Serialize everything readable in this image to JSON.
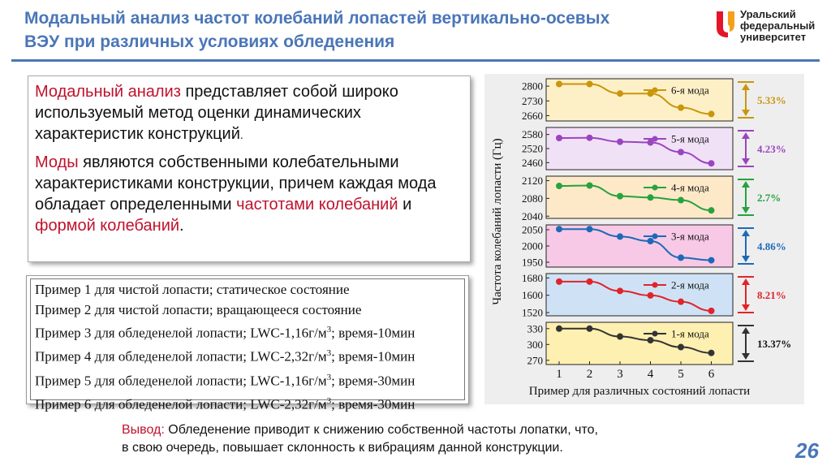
{
  "header": {
    "title_line1": "Модальный анализ частот колебаний лопастей вертикально-осевых",
    "title_line2": "ВЭУ при различных условиях обледенения"
  },
  "logo": {
    "line1": "Уральский",
    "line2": "федеральный",
    "line3": "университет",
    "colors": [
      "#e2152b",
      "#f6a01a"
    ]
  },
  "intro": {
    "p1_term": "Модальный анализ",
    "p1_rest": " представляет собой широко используемый метод оценки динамических характеристик конструкций",
    "p1_end": ".",
    "p2_term": "Моды",
    "p2_rest": " являются собственными колебательными характеристиками конструкции, причем каждая мода обладает определенными ",
    "p2_term2": "частотами колебаний",
    "p2_and": " и ",
    "p2_term3": "формой колебаний",
    "p2_end": "."
  },
  "examples": [
    {
      "text": "Пример 1 для чистой лопасти; статическое состояние",
      "sup": "",
      "tail": ""
    },
    {
      "text": "Пример 2 для чистой лопасти; вращающееся состояние",
      "sup": "",
      "tail": ""
    },
    {
      "text": "Пример 3 для обледенелой лопасти; LWC-1,16г/м",
      "sup": "3",
      "tail": "; время-10мин"
    },
    {
      "text": "Пример 4 для обледенелой лопасти; LWC-2,32г/м",
      "sup": "3",
      "tail": "; время-10мин"
    },
    {
      "text": "Пример 5 для обледенелой лопасти; LWC-1,16г/м",
      "sup": "3",
      "tail": "; время-30мин"
    },
    {
      "text": "Пример 6 для обледенелой лопасти; LWC-2,32г/м",
      "sup": "3",
      "tail": "; время-30мин"
    }
  ],
  "chart_data": {
    "type": "line",
    "ylabel": "Частота колебаний лопасти (Гц)",
    "xlabel": "Пример для различных состояний лопасти",
    "x": [
      1,
      2,
      3,
      4,
      5,
      6
    ],
    "panels": [
      {
        "name": "6-я мода",
        "bg": "#fdf0c6",
        "color": "#c9960c",
        "ylim": [
          2635,
          2835
        ],
        "ticks": [
          2800,
          2730,
          2660
        ],
        "values": [
          2810,
          2810,
          2765,
          2765,
          2698,
          2668
        ],
        "pct": "5.33%"
      },
      {
        "name": "5-я мода",
        "bg": "#f1e1f7",
        "color": "#9b44c0",
        "ylim": [
          2430,
          2610
        ],
        "ticks": [
          2580,
          2520,
          2460
        ],
        "values": [
          2565,
          2566,
          2549,
          2546,
          2505,
          2457
        ],
        "pct": "4.23%"
      },
      {
        "name": "4-я мода",
        "bg": "#fde9c8",
        "color": "#27a23f",
        "ylim": [
          2035,
          2130
        ],
        "ticks": [
          2120,
          2080,
          2040
        ],
        "values": [
          2108,
          2109,
          2085,
          2082,
          2076,
          2053
        ],
        "pct": "2.7%"
      },
      {
        "name": "3-я мода",
        "bg": "#f7c9e6",
        "color": "#1d69b8",
        "ylim": [
          1935,
          2065
        ],
        "ticks": [
          2050,
          2000,
          1950
        ],
        "values": [
          2052,
          2052,
          2029,
          2015,
          1964,
          1956
        ],
        "pct": "4.86%"
      },
      {
        "name": "2-я мода",
        "bg": "#cfe2f5",
        "color": "#e0242a",
        "ylim": [
          1505,
          1700
        ],
        "ticks": [
          1680,
          1600,
          1520
        ],
        "values": [
          1663,
          1663,
          1620,
          1599,
          1570,
          1528
        ],
        "pct": "8.21%"
      },
      {
        "name": "1-я мода",
        "bg": "#fdf0b0",
        "color": "#333333",
        "ylim": [
          262,
          342
        ],
        "ticks": [
          330,
          300,
          270
        ],
        "values": [
          330,
          330,
          315,
          308,
          295,
          284
        ],
        "pct": "13.37%"
      }
    ]
  },
  "conclusion": {
    "label": "Вывод:",
    "line1": " Обледенение приводит к снижению собственной частоты лопатки, что,",
    "line2": "в свою очередь, повышает склонность к вибрациям данной конструкции."
  },
  "page_number": "26"
}
